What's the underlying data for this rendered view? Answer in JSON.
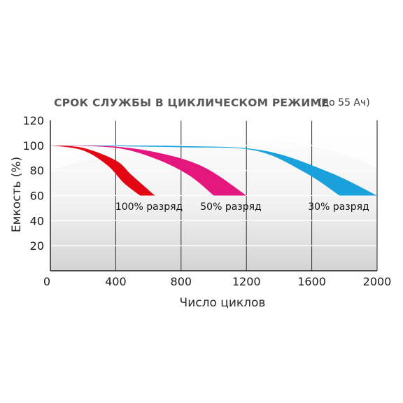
{
  "chart_data": {
    "type": "area",
    "title": "СРОК СЛУЖБЫ В ЦИКЛИЧЕСКОМ РЕЖИМЕ",
    "subtitle": "(до 55 Ач)",
    "xlabel": "Число циклов",
    "ylabel": "Емкость (%)",
    "xlim": [
      0,
      2000
    ],
    "ylim": [
      0,
      120
    ],
    "x_ticks": [
      "0",
      "400",
      "800",
      "1200",
      "1600",
      "2000"
    ],
    "y_ticks": [
      "20",
      "40",
      "60",
      "80",
      "100",
      "120"
    ],
    "grid": true,
    "series": [
      {
        "name": "100% разряд",
        "color": "#e30613",
        "upper": [
          [
            0,
            100
          ],
          [
            200,
            98
          ],
          [
            400,
            88
          ],
          [
            500,
            76
          ],
          [
            640,
            60
          ]
        ],
        "lower": [
          [
            0,
            100
          ],
          [
            200,
            96
          ],
          [
            350,
            84
          ],
          [
            450,
            70
          ],
          [
            550,
            60
          ]
        ]
      },
      {
        "name": "50% разряд",
        "color": "#e5177e",
        "upper": [
          [
            0,
            100
          ],
          [
            400,
            99
          ],
          [
            700,
            93
          ],
          [
            950,
            82
          ],
          [
            1200,
            60
          ]
        ],
        "lower": [
          [
            0,
            100
          ],
          [
            400,
            98
          ],
          [
            650,
            89
          ],
          [
            850,
            76
          ],
          [
            1000,
            60
          ]
        ]
      },
      {
        "name": "30% разряд",
        "color": "#1aa1dc",
        "upper": [
          [
            0,
            100
          ],
          [
            800,
            99.5
          ],
          [
            1300,
            96
          ],
          [
            1700,
            79
          ],
          [
            2000,
            60
          ]
        ],
        "lower": [
          [
            0,
            100
          ],
          [
            800,
            98.5
          ],
          [
            1250,
            96
          ],
          [
            1550,
            79
          ],
          [
            1770,
            60
          ]
        ]
      }
    ]
  }
}
